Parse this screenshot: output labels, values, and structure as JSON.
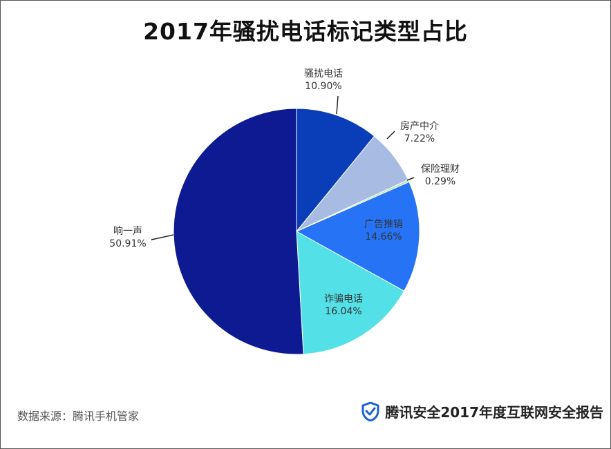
{
  "title": "2017年骚扰电话标记类型占比",
  "source": "数据来源：腾讯手机管家",
  "brand": {
    "text": "腾讯安全2017年度互联网安全报告",
    "icon": "shield-check-icon"
  },
  "colors": {
    "骚扰电话": "#0a3db8",
    "房产中介": "#a8bce3",
    "保险理财": "#b8e6a0",
    "广告推销": "#2673f5",
    "诈骗电话": "#53e0e6",
    "响一声": "#0d1a91"
  },
  "chart_data": {
    "type": "pie",
    "title": "2017年骚扰电话标记类型占比",
    "categories": [
      "骚扰电话",
      "房产中介",
      "保险理财",
      "广告推销",
      "诈骗电话",
      "响一声"
    ],
    "values": [
      10.9,
      7.22,
      0.29,
      14.66,
      16.04,
      50.91
    ],
    "value_labels": [
      "10.90%",
      "7.22%",
      "0.29%",
      "14.66%",
      "16.04%",
      "50.91%"
    ],
    "start": "12 o'clock",
    "direction": "clockwise"
  }
}
